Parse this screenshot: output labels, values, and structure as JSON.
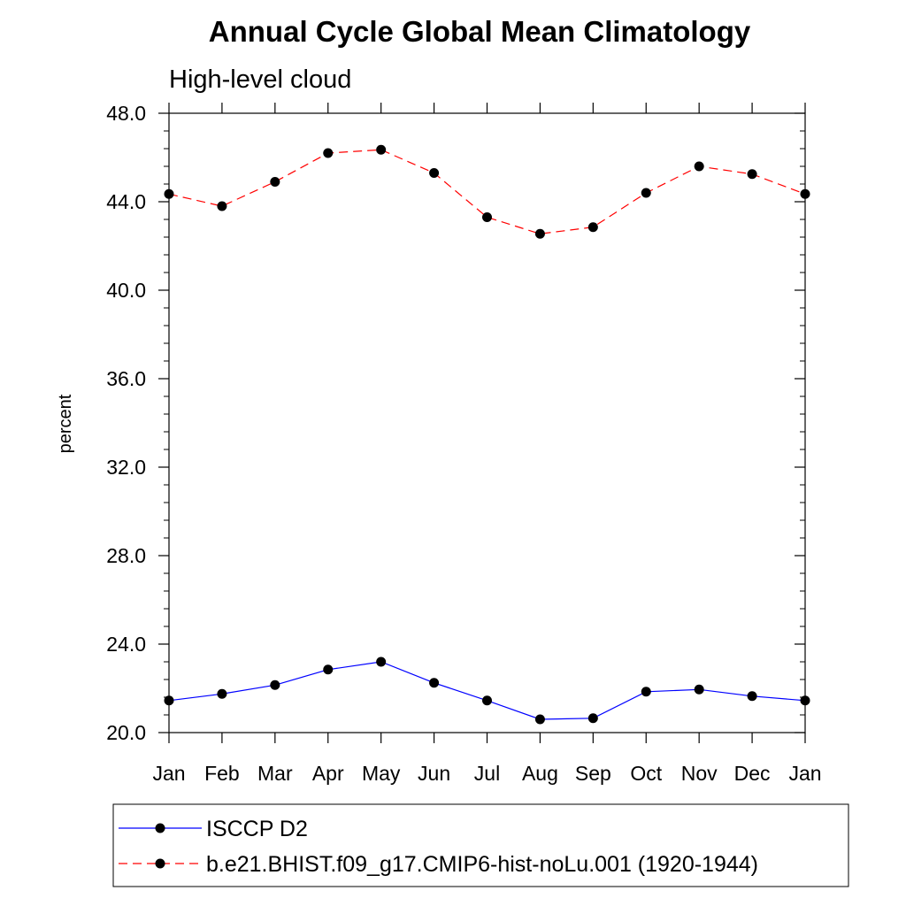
{
  "chart_data": {
    "type": "line",
    "title": "Annual Cycle Global Mean Climatology",
    "subtitle": "High-level cloud",
    "xlabel": "",
    "ylabel": "percent",
    "categories": [
      "Jan",
      "Feb",
      "Mar",
      "Apr",
      "May",
      "Jun",
      "Jul",
      "Aug",
      "Sep",
      "Oct",
      "Nov",
      "Dec",
      "Jan"
    ],
    "ylim": [
      20.0,
      48.0
    ],
    "yticks": [
      "20.0",
      "24.0",
      "28.0",
      "32.0",
      "36.0",
      "40.0",
      "44.0",
      "48.0"
    ],
    "grid": false,
    "legend_position": "bottom",
    "series": [
      {
        "name": "ISCCP D2",
        "color": "#0000ff",
        "line_style": "solid",
        "marker": "filled-circle",
        "values": [
          21.45,
          21.75,
          22.15,
          22.85,
          23.2,
          22.25,
          21.45,
          20.6,
          20.65,
          21.85,
          21.95,
          21.65,
          21.45
        ]
      },
      {
        "name": "b.e21.BHIST.f09_g17.CMIP6-hist-noLu.001 (1920-1944)",
        "color": "#ff0000",
        "line_style": "dashed",
        "marker": "filled-circle",
        "values": [
          44.35,
          43.8,
          44.9,
          46.2,
          46.35,
          45.3,
          43.3,
          42.55,
          42.85,
          44.4,
          45.6,
          45.25,
          44.35
        ]
      }
    ]
  }
}
